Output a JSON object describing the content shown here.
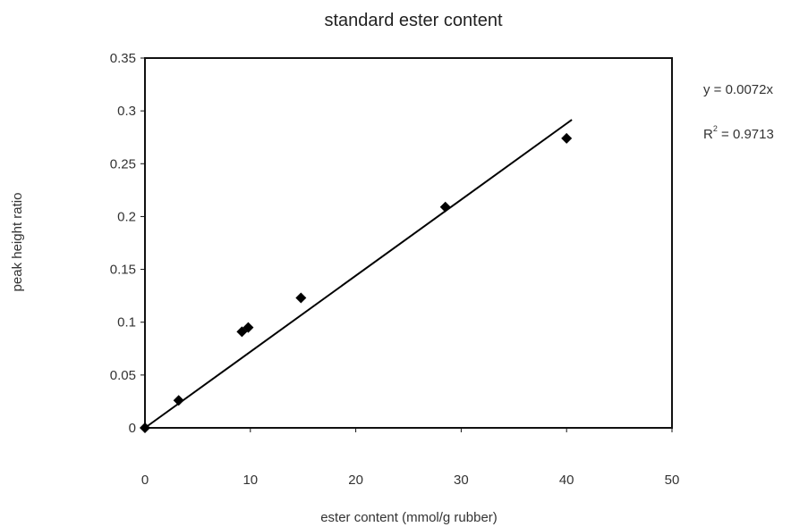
{
  "chart_data": {
    "type": "scatter",
    "title": "standard ester content",
    "xlabel": "ester content (mmol/g rubber)",
    "ylabel": "peak height ratio",
    "xlim": [
      0,
      50
    ],
    "ylim": [
      0,
      0.35
    ],
    "x_ticks": [
      "0",
      "10",
      "20",
      "30",
      "40",
      "50"
    ],
    "y_ticks": [
      "0",
      "0.05",
      "0.1",
      "0.15",
      "0.2",
      "0.25",
      "0.3",
      "0.35"
    ],
    "series": [
      {
        "points": [
          {
            "x": 0,
            "y": 0
          },
          {
            "x": 3.2,
            "y": 0.026
          },
          {
            "x": 9.2,
            "y": 0.091
          },
          {
            "x": 9.8,
            "y": 0.095
          },
          {
            "x": 14.8,
            "y": 0.123
          },
          {
            "x": 28.5,
            "y": 0.209
          },
          {
            "x": 40.0,
            "y": 0.274
          }
        ],
        "color": "#000000"
      }
    ],
    "trendline": {
      "slope": 0.0072,
      "x_range": [
        0,
        40.5
      ],
      "color": "#000000"
    },
    "annotations": {
      "equation": "y = 0.0072x",
      "r2_prefix": "R",
      "r2_exponent": "2",
      "r2_value": " = 0.9713"
    },
    "grid": false,
    "legend": "none"
  }
}
